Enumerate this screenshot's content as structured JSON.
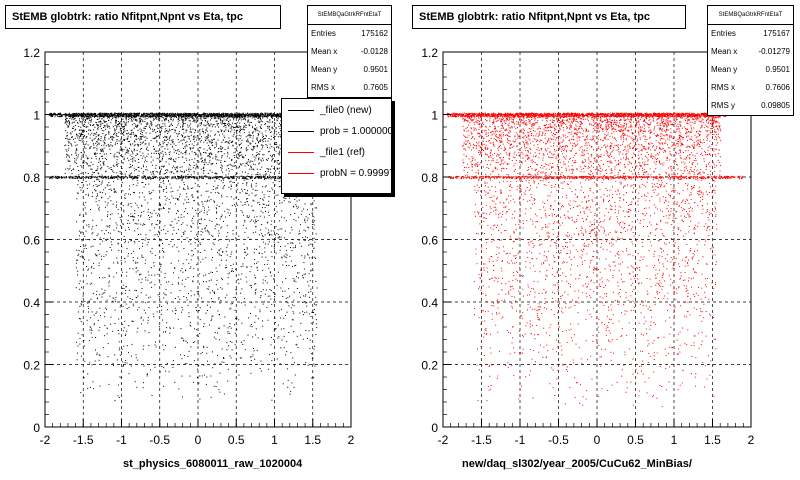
{
  "chart_data": [
    {
      "type": "scatter",
      "title": "StEMB globtrk: ratio Nfitpnt,Npnt vs Eta, tpc",
      "xlabel": "st_physics_6080011_raw_1020004",
      "ylabel": "",
      "xlim": [
        -2,
        2
      ],
      "ylim": [
        0,
        1.2
      ],
      "xticks": [
        "-2",
        "-1.5",
        "-1",
        "-0.5",
        "0",
        "0.5",
        "1",
        "1.5",
        "2"
      ],
      "yticks": [
        "0",
        "0.2",
        "0.4",
        "0.6",
        "0.8",
        "1",
        "1.2"
      ],
      "grid": true,
      "color": "#000000",
      "stats": {
        "name": "StEMBQaGtrkRFntEtaT",
        "rows": [
          {
            "label": "Entries",
            "value": "175162"
          },
          {
            "label": "Mean x",
            "value": "-0.0128"
          },
          {
            "label": "Mean y",
            "value": "0.9501"
          },
          {
            "label": "RMS x",
            "value": "0.7605"
          }
        ]
      },
      "legend": {
        "placement": "top-right",
        "entries": [
          {
            "label": "_file0 (new)",
            "color": "#000000"
          },
          {
            "label": "prob = 1.000000",
            "color": "#000000"
          },
          {
            "label": "_file1 (ref)",
            "color": "#ff0000"
          },
          {
            "label": "probN = 0.999973",
            "color": "#ff0000"
          }
        ]
      }
    },
    {
      "type": "scatter",
      "title": "StEMB globtrk: ratio Nfitpnt,Npnt vs Eta, tpc",
      "xlabel": "new/daq_sl302/year_2005/CuCu62_MinBias/",
      "ylabel": "",
      "xlim": [
        -2,
        2
      ],
      "ylim": [
        0,
        1.2
      ],
      "xticks": [
        "-2",
        "-1.5",
        "-1",
        "-0.5",
        "0",
        "0.5",
        "1",
        "1.5",
        "2"
      ],
      "yticks": [
        "0",
        "0.2",
        "0.4",
        "0.6",
        "0.8",
        "1",
        "1.2"
      ],
      "grid": true,
      "color": "#ff0000",
      "stats": {
        "name": "StEMBQaGtrkRFntEtaT",
        "rows": [
          {
            "label": "Entries",
            "value": "175167"
          },
          {
            "label": "Mean x",
            "value": "-0.01279"
          },
          {
            "label": "Mean y",
            "value": "0.9501"
          },
          {
            "label": "RMS x",
            "value": "0.7606"
          },
          {
            "label": "RMS y",
            "value": "0.09805"
          }
        ]
      }
    }
  ]
}
